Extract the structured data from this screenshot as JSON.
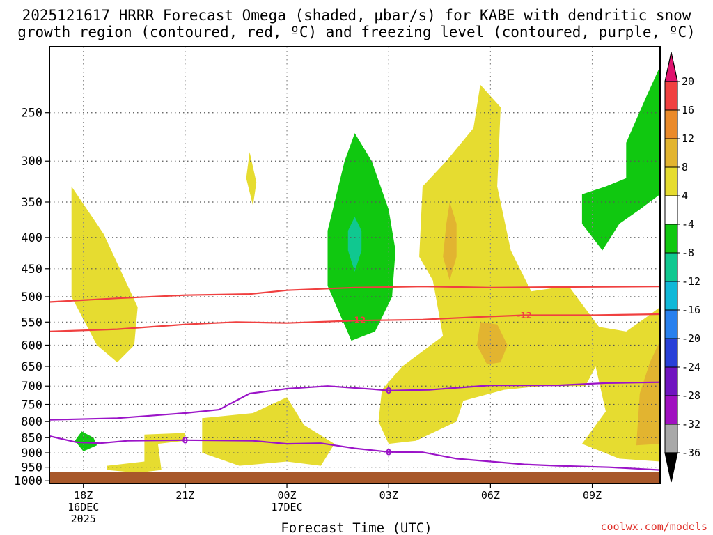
{
  "chart_data": {
    "type": "heatmap",
    "title_line1": "2025121617 HRRR Forecast Omega (shaded, µbar/s) for KABE with dendritic snow",
    "title_line2": "growth region (contoured, red, ºC) and freezing level (contoured, purple, ºC)",
    "xlabel": "Forecast Time (UTC)",
    "ylabel": "",
    "x_range_hours": [
      -1,
      17
    ],
    "x_ticks": [
      {
        "t": 0,
        "lines": [
          "18Z",
          "16DEC",
          "2025"
        ]
      },
      {
        "t": 3,
        "lines": [
          "21Z"
        ]
      },
      {
        "t": 6,
        "lines": [
          "00Z",
          "17DEC"
        ]
      },
      {
        "t": 9,
        "lines": [
          "03Z"
        ]
      },
      {
        "t": 12,
        "lines": [
          "06Z"
        ]
      },
      {
        "t": 15,
        "lines": [
          "09Z"
        ]
      }
    ],
    "y_range_hpa": [
      1010,
      195
    ],
    "y_ticks": [
      "250",
      "300",
      "350",
      "400",
      "450",
      "500",
      "550",
      "600",
      "650",
      "700",
      "750",
      "800",
      "850",
      "900",
      "950",
      "1000"
    ],
    "colorbar": {
      "labels": [
        "20",
        "16",
        "12",
        "8",
        "4",
        "-4",
        "-8",
        "-12",
        "-16",
        "-20",
        "-24",
        "-28",
        "-32",
        "-36"
      ],
      "colors": [
        "#e0126e",
        "#f04040",
        "#ea8a2a",
        "#e2b430",
        "#e6dc30",
        "#ffffff",
        "#10c810",
        "#10c890",
        "#10b8d8",
        "#2880ee",
        "#2840d8",
        "#7014c0",
        "#a010c0",
        "#a8a8a8",
        "#000000"
      ]
    },
    "omega_regions": [
      {
        "value": 4,
        "color": "#e6dc30",
        "points": [
          [
            -0.35,
            330
          ],
          [
            0.6,
            395
          ],
          [
            1.6,
            520
          ],
          [
            1.5,
            600
          ],
          [
            1.0,
            640
          ],
          [
            0.4,
            600
          ],
          [
            -0.35,
            500
          ]
        ]
      },
      {
        "value": 4,
        "color": "#e6dc30",
        "points": [
          [
            4.9,
            290
          ],
          [
            5.1,
            325
          ],
          [
            5.0,
            355
          ],
          [
            4.8,
            320
          ]
        ]
      },
      {
        "value": -8,
        "color": "#10c810",
        "points": [
          [
            8.0,
            270
          ],
          [
            8.5,
            300
          ],
          [
            9.0,
            360
          ],
          [
            9.2,
            420
          ],
          [
            9.1,
            500
          ],
          [
            8.6,
            570
          ],
          [
            7.9,
            590
          ],
          [
            7.2,
            480
          ],
          [
            7.2,
            390
          ],
          [
            7.7,
            300
          ]
        ]
      },
      {
        "value": -12,
        "color": "#10c890",
        "points": [
          [
            8.0,
            370
          ],
          [
            8.2,
            390
          ],
          [
            8.2,
            420
          ],
          [
            8.0,
            455
          ],
          [
            7.8,
            420
          ],
          [
            7.8,
            390
          ]
        ]
      },
      {
        "value": 4,
        "color": "#e6dc30",
        "points": [
          [
            11.7,
            225
          ],
          [
            12.3,
            245
          ],
          [
            12.2,
            330
          ],
          [
            12.6,
            420
          ],
          [
            13.2,
            490
          ],
          [
            14.3,
            480
          ],
          [
            15.2,
            560
          ],
          [
            16.0,
            570
          ],
          [
            16.6,
            540
          ],
          [
            17.0,
            520
          ],
          [
            17.0,
            930
          ],
          [
            15.8,
            920
          ],
          [
            14.7,
            870
          ],
          [
            15.4,
            770
          ],
          [
            15.1,
            650
          ],
          [
            14.8,
            700
          ],
          [
            13.5,
            700
          ],
          [
            12.4,
            710
          ],
          [
            11.2,
            740
          ],
          [
            11.0,
            800
          ],
          [
            9.8,
            860
          ],
          [
            9.0,
            870
          ],
          [
            8.7,
            800
          ],
          [
            8.8,
            710
          ],
          [
            9.4,
            650
          ],
          [
            10.6,
            580
          ],
          [
            10.3,
            470
          ],
          [
            9.9,
            430
          ],
          [
            10.0,
            330
          ],
          [
            10.7,
            300
          ],
          [
            11.5,
            265
          ]
        ]
      },
      {
        "value": 4,
        "color": "#e6dc30",
        "points": [
          [
            3.5,
            790
          ],
          [
            5.0,
            775
          ],
          [
            6.0,
            730
          ],
          [
            6.5,
            810
          ],
          [
            7.4,
            870
          ],
          [
            7.0,
            945
          ],
          [
            6.0,
            930
          ],
          [
            4.6,
            945
          ],
          [
            3.5,
            900
          ]
        ]
      },
      {
        "value": 4,
        "color": "#e6dc30",
        "points": [
          [
            1.8,
            840
          ],
          [
            3.0,
            835
          ],
          [
            3.0,
            860
          ],
          [
            2.2,
            870
          ],
          [
            2.3,
            960
          ],
          [
            1.6,
            970
          ],
          [
            0.7,
            960
          ],
          [
            0.7,
            945
          ],
          [
            1.8,
            930
          ]
        ]
      },
      {
        "value": 8,
        "color": "#e2b430",
        "points": [
          [
            10.8,
            350
          ],
          [
            11.0,
            380
          ],
          [
            11.0,
            430
          ],
          [
            10.8,
            470
          ],
          [
            10.6,
            430
          ],
          [
            10.7,
            380
          ]
        ]
      },
      {
        "value": 8,
        "color": "#e2b430",
        "points": [
          [
            11.7,
            550
          ],
          [
            12.2,
            555
          ],
          [
            12.5,
            600
          ],
          [
            12.3,
            640
          ],
          [
            11.9,
            645
          ],
          [
            11.6,
            600
          ]
        ]
      },
      {
        "value": 8,
        "color": "#e2b430",
        "points": [
          [
            17.0,
            590
          ],
          [
            17.0,
            870
          ],
          [
            16.3,
            875
          ],
          [
            16.4,
            720
          ],
          [
            16.7,
            640
          ]
        ]
      },
      {
        "value": -8,
        "color": "#10c810",
        "points": [
          [
            17.0,
            210
          ],
          [
            17.0,
            340
          ],
          [
            16.4,
            360
          ],
          [
            15.8,
            380
          ],
          [
            15.3,
            420
          ],
          [
            14.7,
            380
          ],
          [
            14.7,
            340
          ],
          [
            15.4,
            330
          ],
          [
            16.0,
            320
          ],
          [
            16.0,
            280
          ],
          [
            16.6,
            235
          ]
        ]
      },
      {
        "value": -8,
        "color": "#10c810",
        "points": [
          [
            -0.05,
            830
          ],
          [
            0.3,
            850
          ],
          [
            0.4,
            875
          ],
          [
            0.0,
            895
          ],
          [
            -0.25,
            860
          ]
        ]
      }
    ],
    "dgz_contours": [
      {
        "color": "#f04040",
        "points": [
          [
            -1,
            510
          ],
          [
            1,
            503
          ],
          [
            3,
            497
          ],
          [
            4.9,
            495
          ],
          [
            6,
            488
          ],
          [
            8,
            483
          ],
          [
            10,
            481
          ],
          [
            12,
            483
          ],
          [
            14,
            482
          ],
          [
            17,
            481
          ]
        ]
      },
      {
        "color": "#f04040",
        "label": "-12",
        "label_positions": [
          [
            8.1,
            545
          ],
          [
            13.0,
            536
          ]
        ],
        "points": [
          [
            -1,
            570
          ],
          [
            1,
            565
          ],
          [
            3,
            555
          ],
          [
            4.5,
            550
          ],
          [
            6,
            552
          ],
          [
            8,
            547
          ],
          [
            10,
            545
          ],
          [
            11.5,
            540
          ],
          [
            13,
            536
          ],
          [
            15,
            536
          ],
          [
            17,
            534
          ]
        ]
      }
    ],
    "freezing_contours": [
      {
        "color": "#9b14c8",
        "points": [
          [
            -1,
            795
          ],
          [
            1,
            790
          ],
          [
            3,
            775
          ],
          [
            4,
            765
          ],
          [
            4.9,
            720
          ],
          [
            6,
            707
          ],
          [
            7.2,
            700
          ],
          [
            8.5,
            708
          ],
          [
            9,
            712
          ],
          [
            10.2,
            710
          ],
          [
            12,
            698
          ],
          [
            14,
            698
          ],
          [
            15.4,
            692
          ],
          [
            17,
            690
          ]
        ]
      },
      {
        "color": "#9b14c8",
        "label": "0",
        "label_positions": [
          [
            9.0,
            712
          ]
        ],
        "points": []
      },
      {
        "color": "#9b14c8",
        "points": [
          [
            -1,
            845
          ],
          [
            -0.2,
            865
          ],
          [
            0.5,
            868
          ],
          [
            1.3,
            860
          ],
          [
            3,
            858
          ],
          [
            5,
            860
          ],
          [
            6,
            870
          ],
          [
            7,
            868
          ],
          [
            8,
            885
          ],
          [
            9,
            897
          ],
          [
            10,
            898
          ],
          [
            11,
            920
          ],
          [
            12,
            930
          ],
          [
            13,
            940
          ],
          [
            14,
            945
          ],
          [
            15.5,
            950
          ],
          [
            17,
            960
          ]
        ]
      },
      {
        "color": "#9b14c8",
        "label": "0",
        "label_positions": [
          [
            3.0,
            858
          ],
          [
            9.0,
            897
          ]
        ],
        "points": []
      }
    ],
    "ground_color": "#a8582a"
  },
  "credit": "coolwx.com/models"
}
